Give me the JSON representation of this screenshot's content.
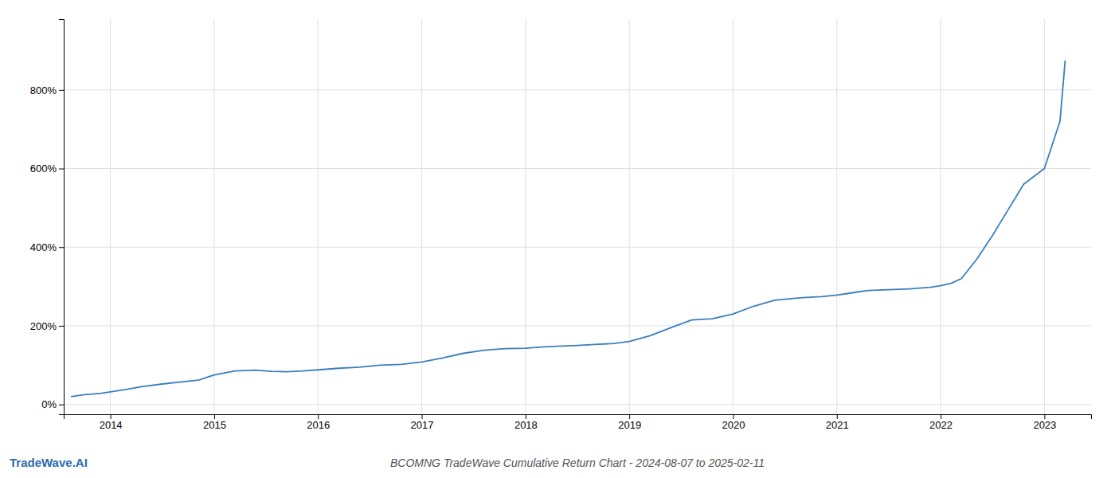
{
  "chart_data": {
    "type": "line",
    "title": "BCOMNG TradeWave Cumulative Return Chart - 2024-08-07 to 2025-02-11",
    "annotations": [
      "TradeWave.AI"
    ],
    "color": "#3a7ebf",
    "grid": true,
    "x": [
      2013.62,
      2013.75,
      2013.9,
      2014.0,
      2014.15,
      2014.3,
      2014.5,
      2014.7,
      2014.85,
      2015.0,
      2015.2,
      2015.4,
      2015.55,
      2015.7,
      2015.85,
      2016.0,
      2016.2,
      2016.4,
      2016.6,
      2016.8,
      2017.0,
      2017.2,
      2017.4,
      2017.6,
      2017.8,
      2018.0,
      2018.15,
      2018.3,
      2018.5,
      2018.7,
      2018.85,
      2019.0,
      2019.2,
      2019.4,
      2019.6,
      2019.8,
      2020.0,
      2020.2,
      2020.4,
      2020.6,
      2020.7,
      2020.85,
      2021.0,
      2021.1,
      2021.2,
      2021.3,
      2021.5,
      2021.7,
      2021.9,
      2022.0,
      2022.1,
      2022.2,
      2022.35,
      2022.5,
      2022.65,
      2022.8,
      2023.0,
      2023.15,
      2023.2
    ],
    "values": [
      20,
      25,
      28,
      32,
      38,
      45,
      52,
      58,
      62,
      75,
      85,
      87,
      84,
      83,
      85,
      88,
      92,
      95,
      100,
      102,
      108,
      118,
      130,
      138,
      142,
      143,
      146,
      148,
      150,
      153,
      155,
      160,
      175,
      195,
      215,
      218,
      230,
      250,
      265,
      270,
      272,
      274,
      278,
      282,
      286,
      290,
      292,
      294,
      298,
      302,
      308,
      320,
      370,
      430,
      495,
      560,
      600,
      720,
      875
    ],
    "xlim": [
      2013.55,
      2023.45
    ],
    "xticks": [
      2014,
      2015,
      2016,
      2017,
      2018,
      2019,
      2020,
      2021,
      2022,
      2023
    ],
    "ylim": [
      -25,
      980
    ],
    "yticks": [
      {
        "value": 0,
        "label": "0%"
      },
      {
        "value": 200,
        "label": "200%"
      },
      {
        "value": 400,
        "label": "400%"
      },
      {
        "value": 600,
        "label": "600%"
      },
      {
        "value": 800,
        "label": "800%"
      }
    ]
  }
}
